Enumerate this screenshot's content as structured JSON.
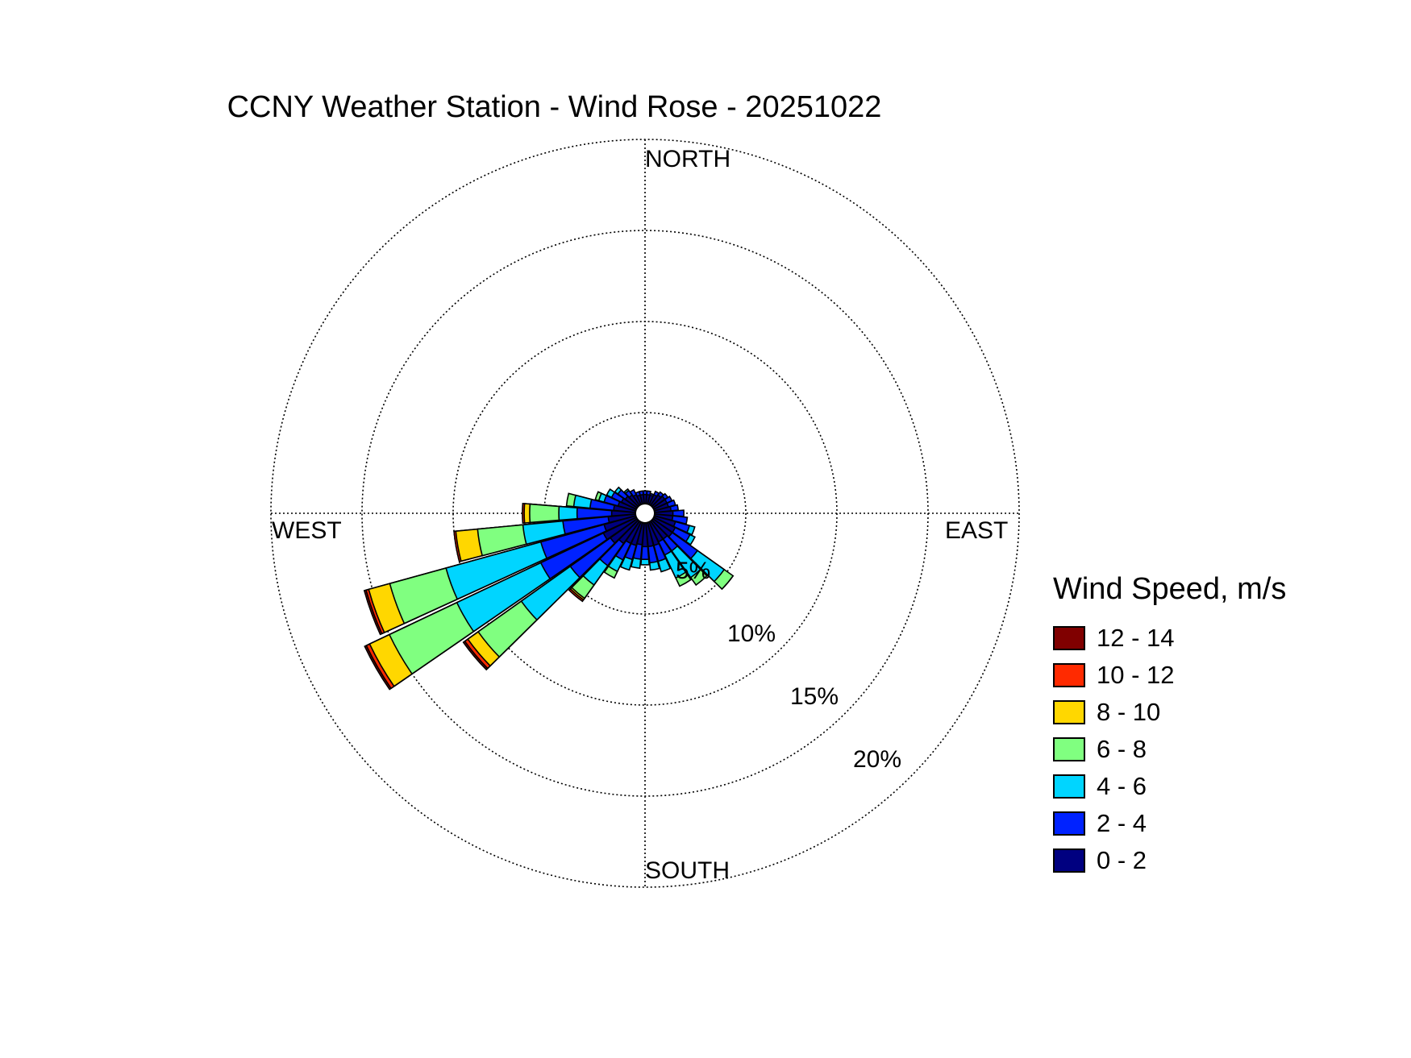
{
  "chart_data": {
    "type": "wind-rose",
    "title": "CCNY Weather Station - Wind Rose - 20251022",
    "direction_labels": {
      "north": "NORTH",
      "south": "SOUTH",
      "east": "EAST",
      "west": "WEST"
    },
    "ring_labels": [
      "5%",
      "10%",
      "15%",
      "20%"
    ],
    "rings": [
      5,
      10,
      15,
      20
    ],
    "max_radius": 20,
    "grid": true,
    "legend": {
      "title": "Wind Speed, m/s",
      "placement": "right",
      "bins": [
        {
          "label": "12 - 14",
          "color": "#800000"
        },
        {
          "label": "10 - 12",
          "color": "#ff2a00"
        },
        {
          "label": "8 - 10",
          "color": "#ffd700"
        },
        {
          "label": "6 - 8",
          "color": "#80ff80"
        },
        {
          "label": "4 - 6",
          "color": "#00d5ff"
        },
        {
          "label": "2 - 4",
          "color": "#0022ff"
        },
        {
          "label": "0 - 2",
          "color": "#000080"
        }
      ]
    },
    "sector_width_deg": 10,
    "sectors": [
      {
        "dir": 0,
        "cumulative": [
          0.5,
          0.7
        ]
      },
      {
        "dir": 10,
        "cumulative": [
          0.5,
          0.7
        ]
      },
      {
        "dir": 20,
        "cumulative": [
          0.5,
          0.6
        ]
      },
      {
        "dir": 30,
        "cumulative": [
          0.6,
          0.8
        ]
      },
      {
        "dir": 40,
        "cumulative": [
          0.7,
          0.9
        ]
      },
      {
        "dir": 50,
        "cumulative": [
          0.8,
          1.0
        ]
      },
      {
        "dir": 60,
        "cumulative": [
          0.8,
          1.1
        ]
      },
      {
        "dir": 70,
        "cumulative": [
          0.8,
          1.2
        ]
      },
      {
        "dir": 80,
        "cumulative": [
          0.9,
          1.3
        ]
      },
      {
        "dir": 90,
        "cumulative": [
          1.0,
          1.6
        ]
      },
      {
        "dir": 100,
        "cumulative": [
          1.0,
          1.8
        ]
      },
      {
        "dir": 110,
        "cumulative": [
          1.2,
          2.0,
          2.3
        ]
      },
      {
        "dir": 120,
        "cumulative": [
          1.3,
          2.2,
          2.5
        ]
      },
      {
        "dir": 130,
        "cumulative": [
          1.3,
          3.0,
          4.8,
          5.4
        ]
      },
      {
        "dir": 140,
        "cumulative": [
          1.2,
          2.0,
          3.8,
          4.3
        ]
      },
      {
        "dir": 150,
        "cumulative": [
          1.2,
          2.0,
          3.4,
          3.9
        ]
      },
      {
        "dir": 160,
        "cumulative": [
          1.3,
          2.2,
          2.8
        ]
      },
      {
        "dir": 170,
        "cumulative": [
          1.3,
          2.2,
          2.6
        ]
      },
      {
        "dir": 180,
        "cumulative": [
          1.3,
          2.0,
          2.3
        ]
      },
      {
        "dir": 190,
        "cumulative": [
          1.2,
          2.0,
          2.5
        ]
      },
      {
        "dir": 200,
        "cumulative": [
          1.3,
          2.1,
          2.7
        ]
      },
      {
        "dir": 210,
        "cumulative": [
          1.3,
          2.3,
          3.0,
          3.4
        ]
      },
      {
        "dir": 220,
        "cumulative": [
          1.5,
          3.0,
          4.3,
          5.2,
          5.3,
          5.4
        ]
      },
      {
        "dir": 230,
        "cumulative": [
          1.8,
          4.5,
          7.8,
          10.7,
          11.4,
          11.6,
          11.7
        ]
      },
      {
        "dir": 240,
        "cumulative": [
          2.0,
          5.8,
          10.9,
          15.0,
          16.2,
          16.4,
          16.5
        ]
      },
      {
        "dir": 250,
        "cumulative": [
          1.8,
          5.4,
          10.8,
          14.0,
          15.2,
          15.35,
          15.45
        ]
      },
      {
        "dir": 260,
        "cumulative": [
          1.5,
          4.0,
          6.2,
          8.7,
          9.9,
          10.0
        ]
      },
      {
        "dir": 270,
        "cumulative": [
          1.3,
          3.2,
          4.2,
          5.8,
          6.1,
          6.2
        ]
      },
      {
        "dir": 280,
        "cumulative": [
          1.2,
          2.5,
          3.4,
          3.8
        ]
      },
      {
        "dir": 290,
        "cumulative": [
          1.0,
          1.8,
          2.1,
          2.3
        ]
      },
      {
        "dir": 300,
        "cumulative": [
          0.9,
          1.5,
          1.8
        ]
      },
      {
        "dir": 310,
        "cumulative": [
          0.8,
          1.3,
          1.5
        ]
      },
      {
        "dir": 320,
        "cumulative": [
          0.7,
          1.0,
          1.1
        ]
      },
      {
        "dir": 330,
        "cumulative": [
          0.6,
          0.9
        ]
      },
      {
        "dir": 340,
        "cumulative": [
          0.5,
          0.7
        ]
      },
      {
        "dir": 350,
        "cumulative": [
          0.5,
          0.7
        ]
      }
    ]
  }
}
